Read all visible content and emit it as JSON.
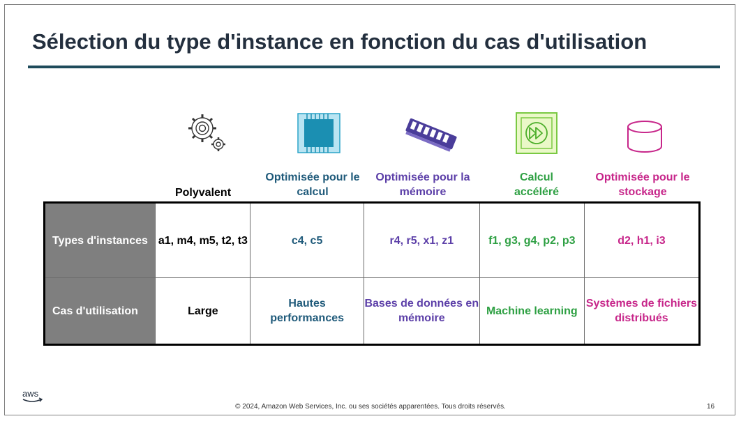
{
  "slide": {
    "title": "Sélection du type d'instance en fonction du cas d'utilisation",
    "footer": "© 2024, Amazon Web Services, Inc. ou ses sociétés apparentées. Tous droits réservés.",
    "page_number": "16",
    "logo_text": "aws"
  },
  "columns": [
    {
      "header": "Polyvalent",
      "icon": "gears-icon",
      "color": "#000000"
    },
    {
      "header": "Optimisée pour le calcul",
      "icon": "chip-icon",
      "color": "#1f5a7a"
    },
    {
      "header": "Optimisée pour la mémoire",
      "icon": "memory-module-icon",
      "color": "#5c3fa8"
    },
    {
      "header": "Calcul accéléré",
      "icon": "fast-forward-icon",
      "color": "#2ea043"
    },
    {
      "header": "Optimisée pour le stockage",
      "icon": "storage-cylinder-icon",
      "color": "#c7268a"
    }
  ],
  "rows": [
    {
      "label": "Types d'instances",
      "cells": [
        "a1, m4, m5, t2, t3",
        "c4, c5",
        "r4, r5, x1, z1",
        "f1, g3, g4, p2, p3",
        "d2, h1, i3"
      ]
    },
    {
      "label": "Cas d'utilisation",
      "cells": [
        "Large",
        "Hautes performances",
        "Bases de données en mémoire",
        "Machine learning",
        "Systèmes de fichiers distribués"
      ]
    }
  ]
}
